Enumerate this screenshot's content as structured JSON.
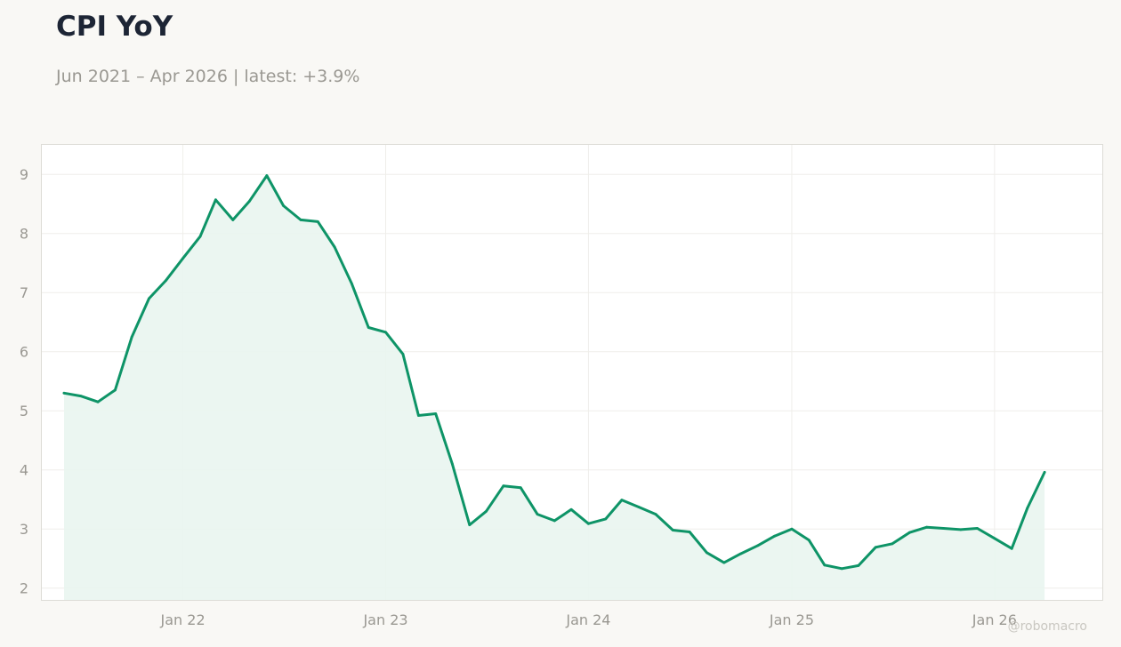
{
  "header": {
    "title": "CPI YoY",
    "subtitle": "Jun 2021 – Apr 2026 | latest: +3.9%"
  },
  "credit": "@robomacro",
  "colors": {
    "background": "#f9f8f5",
    "plot_background": "#ffffff",
    "line": "#0e9467",
    "fill": "#e9f5f0",
    "grid": "#efeeea",
    "axis_text": "#9a9892",
    "title": "#1d2535"
  },
  "chart_data": {
    "type": "area",
    "title": "CPI YoY",
    "subtitle": "Jun 2021 – Apr 2026 | latest: +3.9%",
    "xlabel": "",
    "ylabel": "",
    "grid": true,
    "legend": "none",
    "x_ticks": [
      {
        "label": "Jan 22",
        "date": "2022-01"
      },
      {
        "label": "Jan 23",
        "date": "2023-01"
      },
      {
        "label": "Jan 24",
        "date": "2024-01"
      },
      {
        "label": "Jan 25",
        "date": "2025-01"
      },
      {
        "label": "Jan 26",
        "date": "2026-01"
      }
    ],
    "y_ticks": [
      2,
      3,
      4,
      5,
      6,
      7,
      8,
      9
    ],
    "xlim": [
      "2021-04-22",
      "2026-07-14"
    ],
    "ylim": [
      1.8,
      9.5
    ],
    "series": [
      {
        "x": [
          "2021-06",
          "2021-07",
          "2021-08",
          "2021-09",
          "2021-10",
          "2021-11",
          "2021-12",
          "2022-01",
          "2022-02",
          "2022-03",
          "2022-04",
          "2022-05",
          "2022-06",
          "2022-07",
          "2022-08",
          "2022-09",
          "2022-10",
          "2022-11",
          "2022-12",
          "2023-01",
          "2023-02",
          "2023-03",
          "2023-04",
          "2023-05",
          "2023-06",
          "2023-07",
          "2023-08",
          "2023-09",
          "2023-10",
          "2023-11",
          "2023-12",
          "2024-01",
          "2024-02",
          "2024-03",
          "2024-04",
          "2024-05",
          "2024-06",
          "2024-07",
          "2024-08",
          "2024-09",
          "2024-10",
          "2024-11",
          "2024-12",
          "2025-01",
          "2025-02",
          "2025-03",
          "2025-04",
          "2025-05",
          "2025-06",
          "2025-07",
          "2025-08",
          "2025-09",
          "2025-10",
          "2025-11",
          "2025-12",
          "2026-01",
          "2026-02",
          "2026-03",
          "2026-04"
        ],
        "values": [
          5.3,
          5.25,
          5.15,
          5.35,
          6.25,
          6.9,
          7.2,
          7.58,
          7.95,
          8.57,
          8.23,
          8.55,
          8.98,
          8.47,
          8.23,
          8.2,
          7.77,
          7.15,
          6.41,
          6.33,
          5.96,
          4.92,
          4.95,
          4.1,
          3.07,
          3.3,
          3.73,
          3.7,
          3.25,
          3.14,
          3.33,
          3.09,
          3.17,
          3.49,
          3.37,
          3.25,
          2.98,
          2.95,
          2.6,
          2.43,
          2.58,
          2.72,
          2.88,
          3.0,
          2.81,
          2.39,
          2.33,
          2.38,
          2.69,
          2.75,
          2.94,
          3.03,
          3.01,
          2.99,
          3.01,
          2.84,
          2.67,
          3.35,
          3.96
        ]
      }
    ]
  }
}
